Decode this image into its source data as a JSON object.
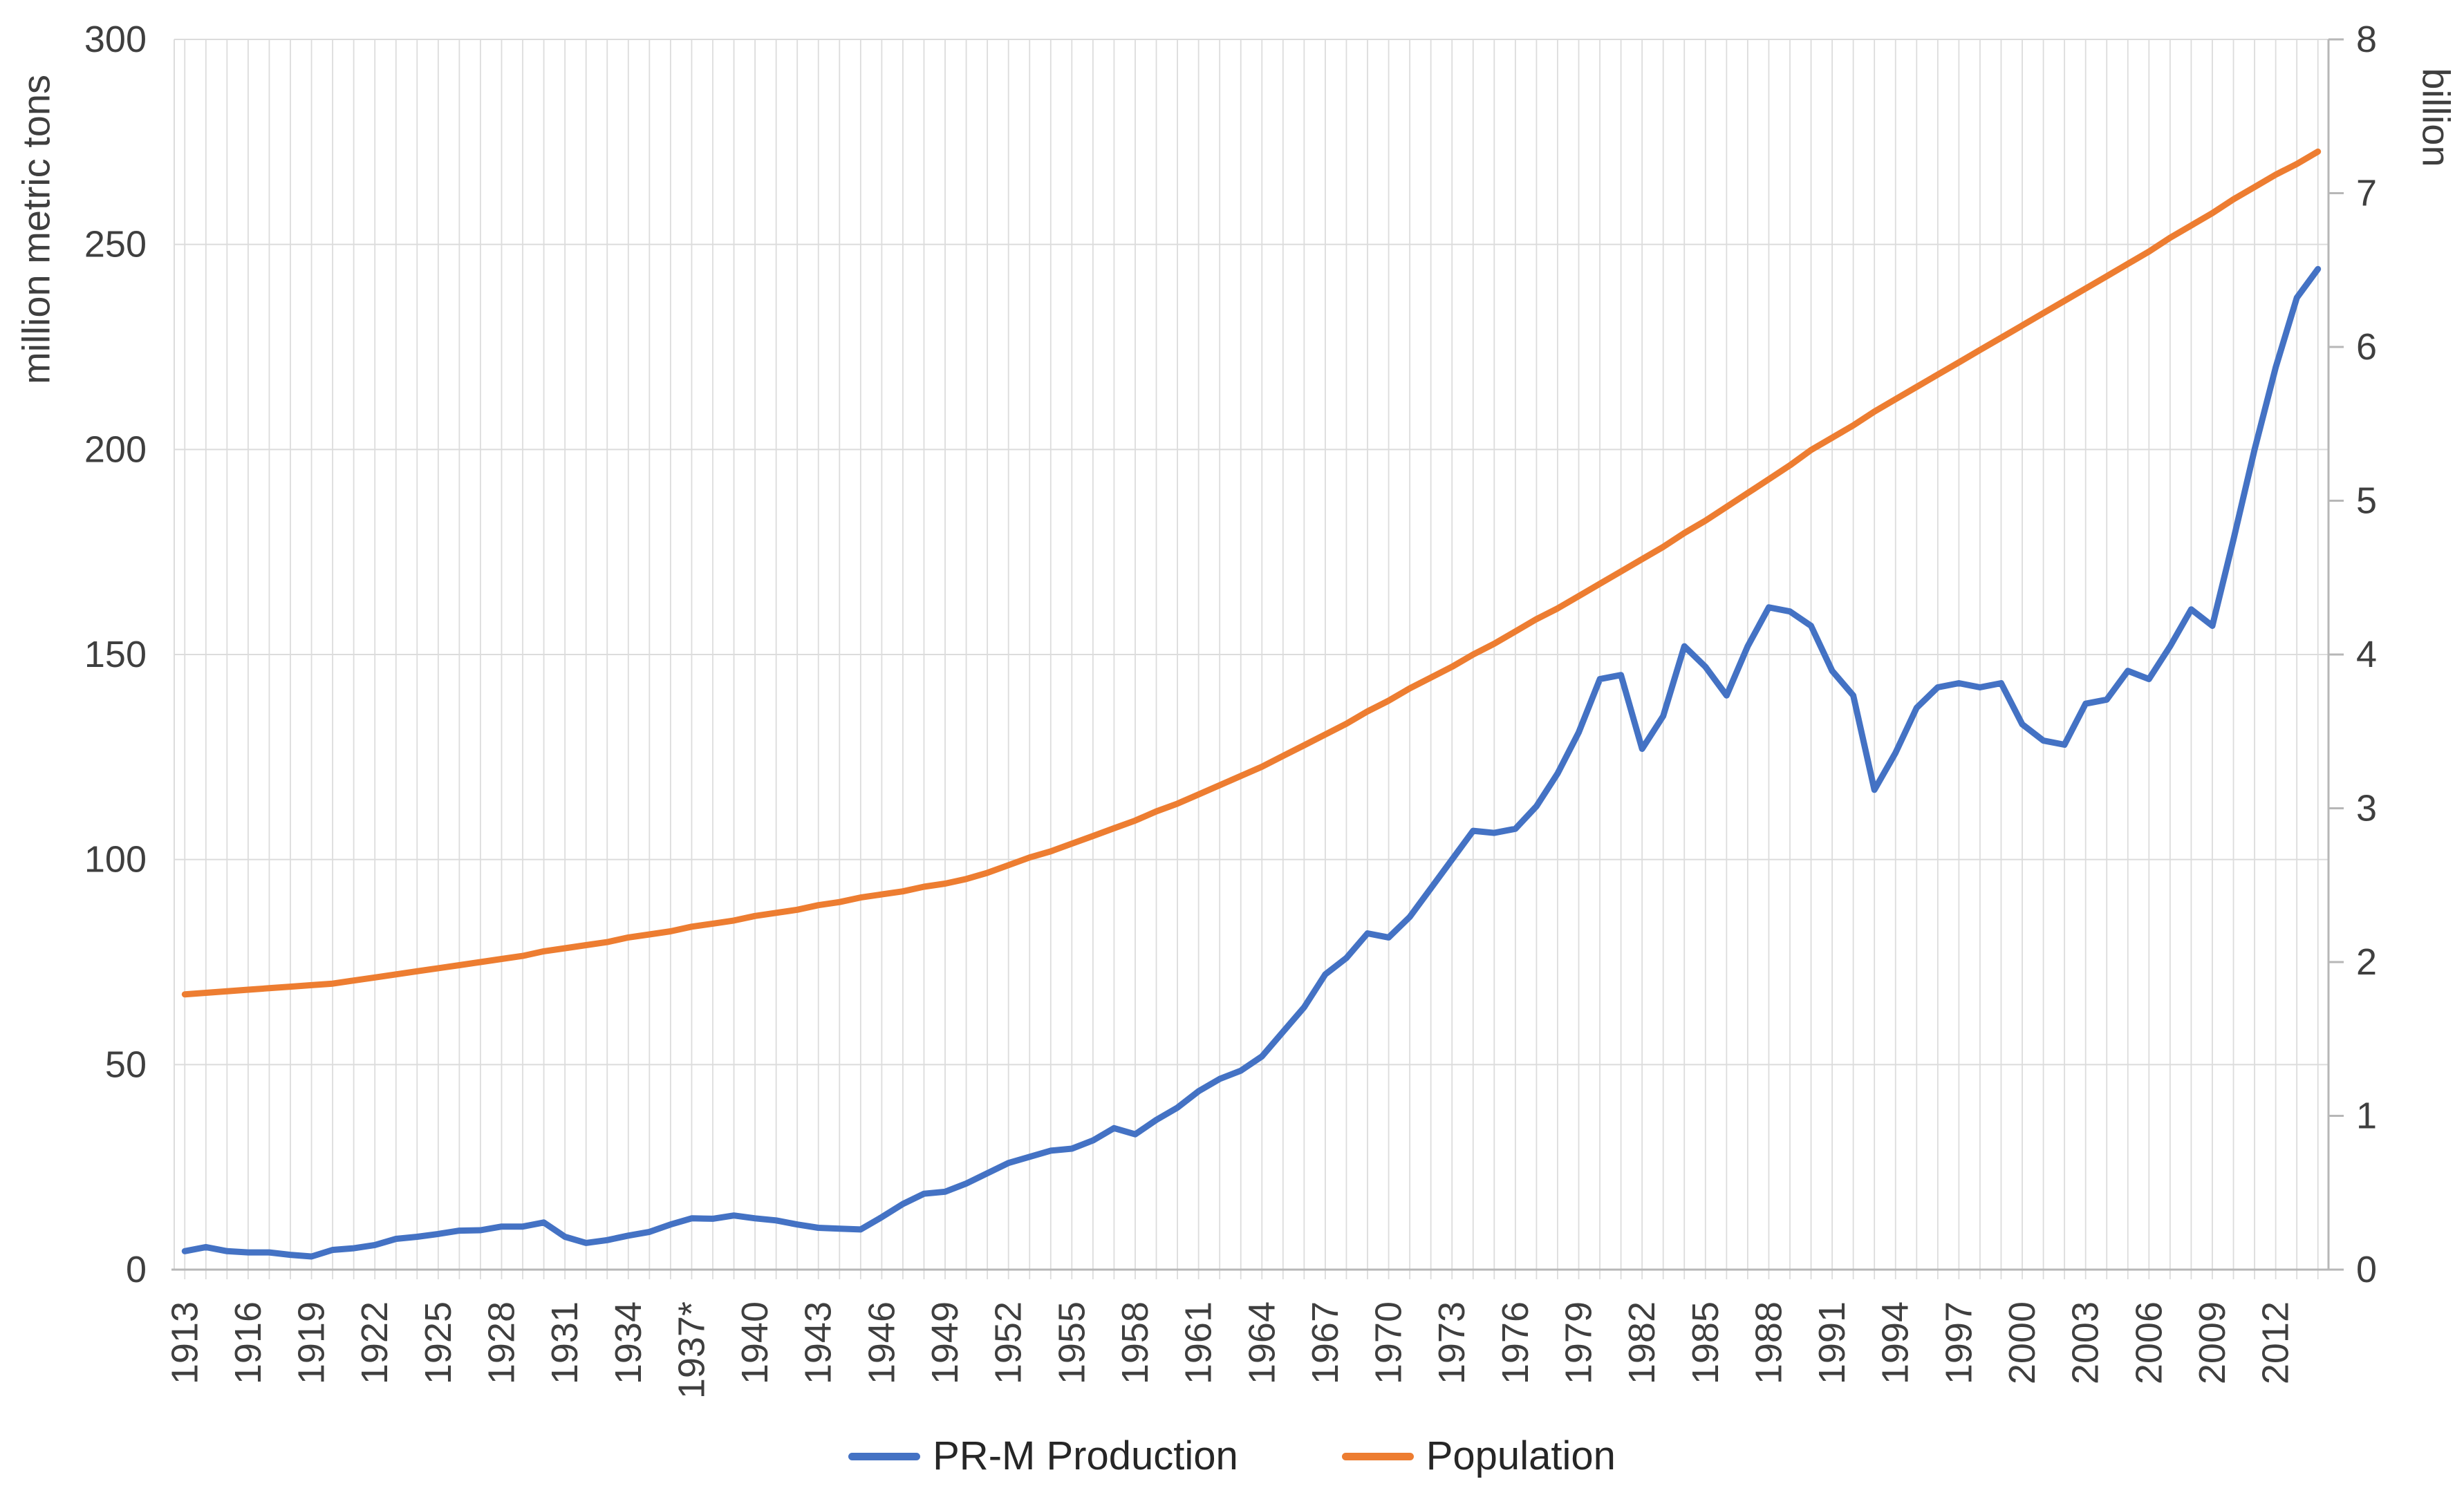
{
  "chart_data": {
    "type": "line",
    "title": "",
    "x": [
      1913,
      1914,
      1915,
      1916,
      1917,
      1918,
      1919,
      1920,
      1921,
      1922,
      1923,
      1924,
      1925,
      1926,
      1927,
      1928,
      1929,
      1930,
      1931,
      1932,
      1933,
      1934,
      1935,
      1936,
      1937,
      1938,
      1939,
      1940,
      1941,
      1942,
      1943,
      1944,
      1945,
      1946,
      1947,
      1948,
      1949,
      1950,
      1951,
      1952,
      1953,
      1954,
      1955,
      1956,
      1957,
      1958,
      1959,
      1960,
      1961,
      1962,
      1963,
      1964,
      1965,
      1966,
      1967,
      1968,
      1969,
      1970,
      1971,
      1972,
      1973,
      1974,
      1975,
      1976,
      1977,
      1978,
      1979,
      1980,
      1981,
      1982,
      1983,
      1984,
      1985,
      1986,
      1987,
      1988,
      1989,
      1990,
      1991,
      1992,
      1993,
      1994,
      1995,
      1996,
      1997,
      1998,
      1999,
      2000,
      2001,
      2002,
      2003,
      2004,
      2005,
      2006,
      2007,
      2008,
      2009,
      2010,
      2011,
      2012,
      2013,
      2014
    ],
    "x_tick_interval": 3,
    "x_tick_labels": [
      "1913",
      "1916",
      "1919",
      "1922",
      "1925",
      "1928",
      "1931",
      "1934",
      "1937*",
      "1940",
      "1943",
      "1946",
      "1949",
      "1952",
      "1955",
      "1958",
      "1961",
      "1964",
      "1967",
      "1970",
      "1973",
      "1976",
      "1979",
      "1982",
      "1985",
      "1988",
      "1991",
      "1994",
      "1997",
      "2000",
      "2003",
      "2006",
      "2009",
      "2012"
    ],
    "series": [
      {
        "name": "PR-M Production",
        "axis": "left",
        "unit": "million metric tons",
        "color": "#4472C4",
        "values": [
          4.5,
          5.5,
          4.5,
          4.2,
          4.2,
          3.6,
          3.2,
          4.8,
          5.2,
          6.0,
          7.5,
          8.0,
          8.7,
          9.5,
          9.6,
          10.5,
          10.5,
          11.5,
          8.0,
          6.5,
          7.2,
          8.3,
          9.2,
          11.0,
          12.5,
          12.4,
          13.2,
          12.5,
          12.0,
          11.0,
          10.2,
          10.0,
          9.8,
          12.8,
          16.0,
          18.5,
          19.0,
          21.0,
          23.5,
          26.0,
          27.5,
          29.0,
          29.5,
          31.5,
          34.5,
          33.0,
          36.5,
          39.5,
          43.5,
          46.5,
          48.5,
          52.0,
          58.0,
          64.0,
          72.0,
          76.0,
          82.0,
          81.0,
          86.0,
          93.0,
          100.0,
          107.0,
          106.5,
          107.5,
          113.0,
          121.0,
          131.0,
          144.0,
          145.0,
          127.0,
          135.0,
          152.0,
          147.0,
          140.0,
          152.0,
          161.5,
          160.5,
          157.0,
          146.0,
          140.0,
          117.0,
          126.0,
          137.0,
          142.0,
          143.0,
          142.0,
          143.0,
          133.0,
          129.0,
          128.0,
          138.0,
          139.0,
          146.0,
          144.0,
          152.0,
          161.0,
          157.0,
          178.0,
          200.0,
          220.0,
          237.0,
          244.0
        ]
      },
      {
        "name": "Population",
        "axis": "right",
        "unit": "billion",
        "color": "#ED7D31",
        "values": [
          1.79,
          1.8,
          1.81,
          1.82,
          1.83,
          1.84,
          1.85,
          1.86,
          1.88,
          1.9,
          1.92,
          1.94,
          1.96,
          1.98,
          2.0,
          2.02,
          2.04,
          2.07,
          2.09,
          2.11,
          2.13,
          2.16,
          2.18,
          2.2,
          2.23,
          2.25,
          2.27,
          2.3,
          2.32,
          2.34,
          2.37,
          2.39,
          2.42,
          2.44,
          2.46,
          2.49,
          2.51,
          2.54,
          2.58,
          2.63,
          2.68,
          2.72,
          2.77,
          2.82,
          2.87,
          2.92,
          2.98,
          3.03,
          3.09,
          3.15,
          3.21,
          3.27,
          3.34,
          3.41,
          3.48,
          3.55,
          3.63,
          3.7,
          3.78,
          3.85,
          3.92,
          4.0,
          4.07,
          4.15,
          4.23,
          4.3,
          4.38,
          4.46,
          4.54,
          4.62,
          4.7,
          4.79,
          4.87,
          4.96,
          5.05,
          5.14,
          5.23,
          5.33,
          5.41,
          5.49,
          5.58,
          5.66,
          5.74,
          5.82,
          5.9,
          5.98,
          6.06,
          6.14,
          6.22,
          6.3,
          6.38,
          6.46,
          6.54,
          6.62,
          6.71,
          6.79,
          6.87,
          6.96,
          7.04,
          7.12,
          7.19,
          7.27
        ]
      }
    ],
    "left_axis": {
      "title": "million metric tons",
      "min": 0,
      "max": 300,
      "step": 50,
      "tick_labels": [
        "0",
        "50",
        "100",
        "150",
        "200",
        "250",
        "300"
      ]
    },
    "right_axis": {
      "title": "billion",
      "min": 0,
      "max": 8,
      "step": 1,
      "tick_labels": [
        "0",
        "1",
        "2",
        "3",
        "4",
        "5",
        "6",
        "7",
        "8"
      ]
    },
    "grid": {
      "horizontal": "every 50 units",
      "vertical": "every year"
    },
    "legend_position": "bottom"
  },
  "legend": {
    "items": [
      {
        "label": "PR-M Production",
        "color": "#4472C4"
      },
      {
        "label": "Population",
        "color": "#ED7D31"
      }
    ]
  },
  "colors": {
    "background": "#FFFFFF",
    "series_production": "#4472C4",
    "series_population": "#ED7D31",
    "gridline": "#DCDCDC",
    "axis_line": "#B7B7B7",
    "tick_text": "#3F3F3F",
    "legend_text": "#262626"
  }
}
